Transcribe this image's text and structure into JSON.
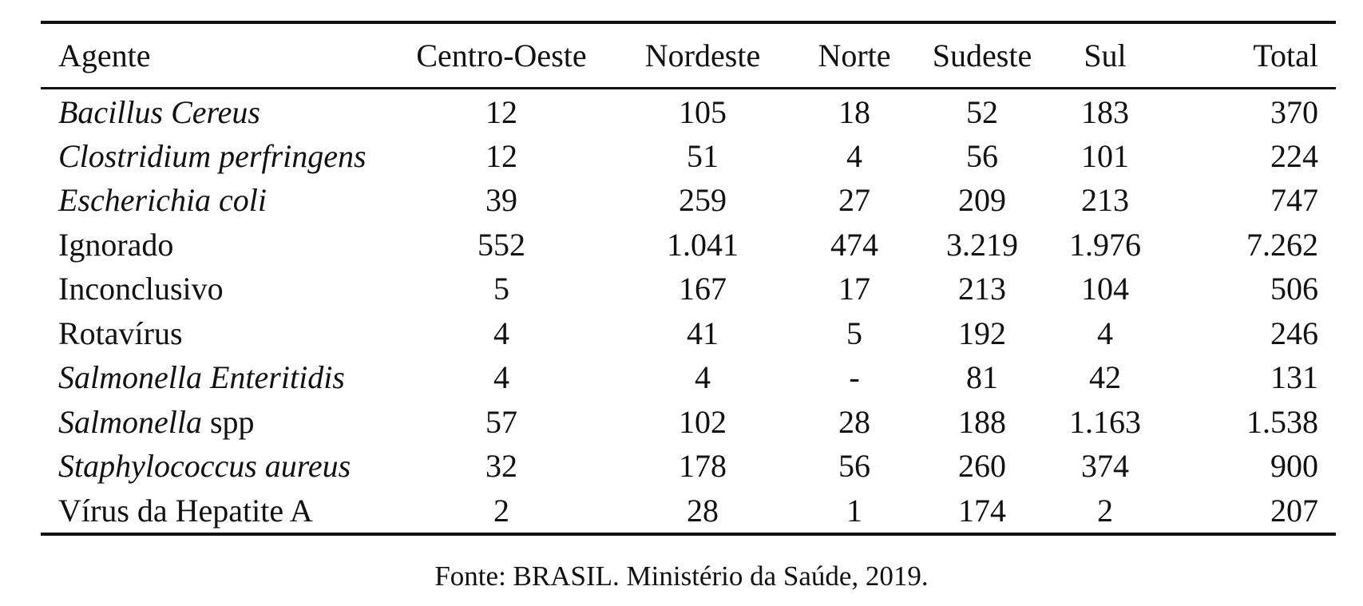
{
  "table": {
    "headers": [
      "Agente",
      "Centro-Oeste",
      "Nordeste",
      "Norte",
      "Sudeste",
      "Sul",
      "Total"
    ],
    "rows": [
      {
        "agent_italic": "Bacillus Cereus",
        "agent_plain": "",
        "values": [
          "12",
          "105",
          "18",
          "52",
          "183",
          "370"
        ]
      },
      {
        "agent_italic": "Clostridium perfringens",
        "agent_plain": "",
        "values": [
          "12",
          "51",
          "4",
          "56",
          "101",
          "224"
        ]
      },
      {
        "agent_italic": "Escherichia coli",
        "agent_plain": "",
        "values": [
          "39",
          "259",
          "27",
          "209",
          "213",
          "747"
        ]
      },
      {
        "agent_italic": "",
        "agent_plain": "Ignorado",
        "values": [
          "552",
          "1.041",
          "474",
          "3.219",
          "1.976",
          "7.262"
        ]
      },
      {
        "agent_italic": "",
        "agent_plain": "Inconclusivo",
        "values": [
          "5",
          "167",
          "17",
          "213",
          "104",
          "506"
        ]
      },
      {
        "agent_italic": "",
        "agent_plain": "Rotavírus",
        "values": [
          "4",
          "41",
          "5",
          "192",
          "4",
          "246"
        ]
      },
      {
        "agent_italic": "Salmonella Enteritidis",
        "agent_plain": "",
        "values": [
          "4",
          "4",
          "-",
          "81",
          "42",
          "131"
        ]
      },
      {
        "agent_italic": "Salmonella",
        "agent_plain": " spp",
        "values": [
          "57",
          "102",
          "28",
          "188",
          "1.163",
          "1.538"
        ]
      },
      {
        "agent_italic": "Staphylococcus aureus",
        "agent_plain": "",
        "values": [
          "32",
          "178",
          "56",
          "260",
          "374",
          "900"
        ]
      },
      {
        "agent_italic": "",
        "agent_plain": "Vírus da Hepatite A",
        "values": [
          "2",
          "28",
          "1",
          "174",
          "2",
          "207"
        ]
      }
    ]
  },
  "source": "Fonte: BRASIL. Ministério da Saúde, 2019."
}
